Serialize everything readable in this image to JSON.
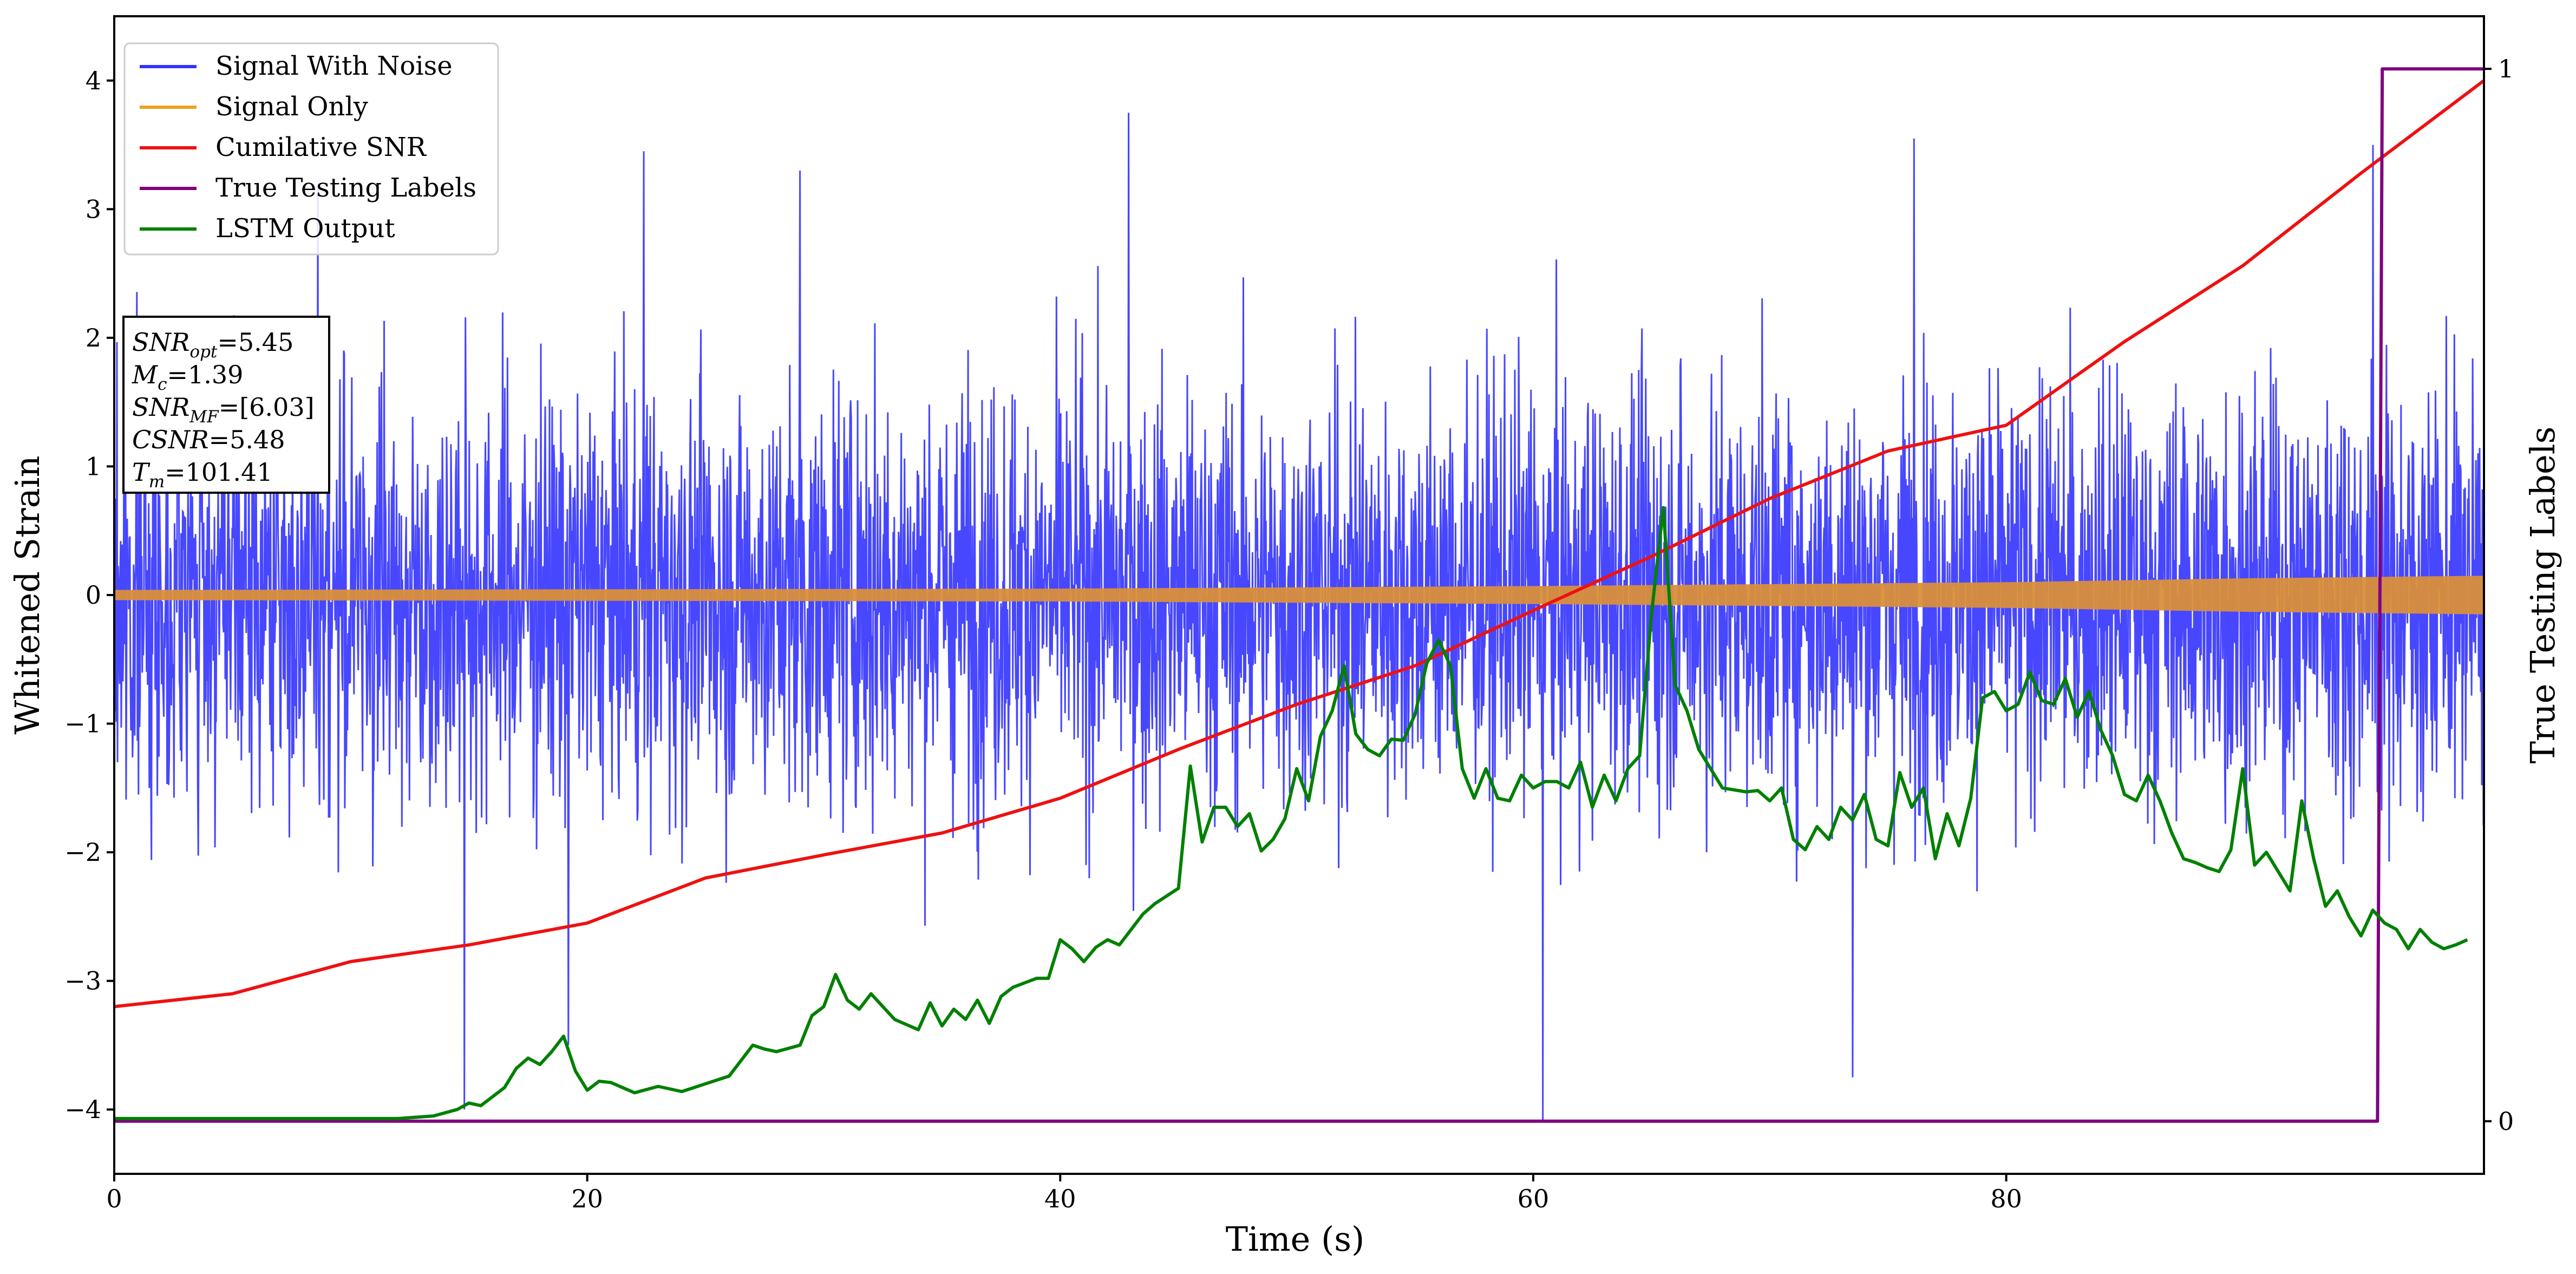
{
  "chart_data": {
    "type": "line",
    "xlabel": "Time (s)",
    "ylabel": "Whitened Strain",
    "y2label": "True Testing Labels",
    "xlim": [
      0,
      100.2
    ],
    "ylim": [
      -4.5,
      4.5
    ],
    "y2lim": [
      -0.05,
      1.05
    ],
    "xticks": [
      "0",
      "20",
      "40",
      "60",
      "80"
    ],
    "xtick_values": [
      0,
      20,
      40,
      60,
      80
    ],
    "yticks": [
      "−4",
      "−3",
      "−2",
      "−1",
      "0",
      "1",
      "2",
      "3",
      "4"
    ],
    "ytick_values": [
      -4,
      -3,
      -2,
      -1,
      0,
      1,
      2,
      3,
      4
    ],
    "y2ticks": [
      "0",
      "1"
    ],
    "y2tick_values": [
      0,
      1
    ],
    "legend_position": "upper-left",
    "grid": false,
    "series": [
      {
        "name": "Signal With Noise",
        "color": "#3333ff",
        "axis": "left",
        "style": "dense noise, approx. zero-mean, std ~0.9, extreme spikes",
        "spikes": [
          [
            14.8,
            -4.0
          ],
          [
            19.2,
            -3.5
          ],
          [
            60.4,
            -4.1
          ],
          [
            73.5,
            -3.75
          ],
          [
            42.9,
            3.75
          ],
          [
            22.4,
            3.45
          ],
          [
            76.1,
            3.55
          ],
          [
            95.5,
            3.5
          ],
          [
            8.6,
            3.2
          ],
          [
            29.0,
            3.3
          ]
        ]
      },
      {
        "name": "Signal Only",
        "color": "#d98f3a",
        "axis": "left",
        "style": "chirp band, half-amplitude growing with time",
        "amplitude_x": [
          0,
          40,
          60,
          80,
          90,
          100.2
        ],
        "amplitude_y": [
          0.04,
          0.05,
          0.07,
          0.1,
          0.13,
          0.15
        ]
      },
      {
        "name": "Cumilative SNR",
        "color": "#ee1111",
        "axis": "left",
        "x": [
          0,
          5,
          10,
          15,
          20,
          25,
          30,
          35,
          40,
          45,
          50,
          55,
          60,
          65,
          70,
          75,
          80,
          85,
          90,
          95,
          100.2
        ],
        "y": [
          -3.2,
          -3.1,
          -2.85,
          -2.72,
          -2.55,
          -2.2,
          -2.02,
          -1.85,
          -1.58,
          -1.2,
          -0.85,
          -0.55,
          -0.12,
          0.3,
          0.75,
          1.12,
          1.32,
          1.97,
          2.56,
          3.28,
          4.0
        ]
      },
      {
        "name": "True Testing Labels",
        "color": "#800080",
        "axis": "right",
        "x": [
          0,
          95.7,
          95.9,
          100.2
        ],
        "y": [
          0,
          0,
          1,
          1
        ]
      },
      {
        "name": "LSTM Output",
        "color": "#008000",
        "axis": "left",
        "x": [
          0,
          12,
          13.5,
          14.5,
          15,
          15.5,
          16,
          16.5,
          17,
          17.5,
          18,
          18.5,
          19,
          19.5,
          20,
          20.5,
          21,
          22,
          23,
          24,
          25,
          26,
          27,
          27.5,
          28,
          29,
          29.5,
          30,
          30.5,
          31,
          31.5,
          32,
          33,
          34,
          34.5,
          35,
          35.5,
          36,
          36.5,
          37,
          37.5,
          38,
          39,
          39.5,
          40,
          40.5,
          41,
          41.5,
          42,
          42.5,
          43,
          43.5,
          44,
          45,
          45.5,
          46,
          46.5,
          47,
          47.5,
          48,
          48.5,
          49,
          49.5,
          50,
          50.5,
          51,
          51.5,
          52,
          52.5,
          53,
          53.5,
          54,
          54.5,
          55,
          55.5,
          56,
          56.5,
          57,
          57.5,
          58,
          58.5,
          59,
          59.5,
          60,
          60.5,
          61,
          61.5,
          62,
          62.5,
          63,
          63.5,
          64,
          64.5,
          65,
          65.5,
          66,
          66.5,
          67,
          67.5,
          68,
          69,
          69.5,
          70,
          70.5,
          71,
          71.5,
          72,
          72.5,
          73,
          73.5,
          74,
          74.5,
          75,
          75.5,
          76,
          76.5,
          77,
          77.5,
          78,
          78.5,
          79,
          79.5,
          80,
          80.5,
          81,
          81.5,
          82,
          82.5,
          83,
          83.5,
          84,
          84.5,
          85,
          85.5,
          86,
          86.5,
          87,
          87.5,
          88,
          88.5,
          89,
          89.5,
          90,
          90.5,
          91,
          91.5,
          92,
          92.5,
          93,
          93.5,
          94,
          94.5,
          95,
          95.5,
          96,
          96.5,
          97,
          97.5,
          98,
          98.5,
          99,
          99.5
        ],
        "y": [
          -4.07,
          -4.07,
          -4.05,
          -4.0,
          -3.95,
          -3.97,
          -3.9,
          -3.83,
          -3.68,
          -3.6,
          -3.65,
          -3.55,
          -3.43,
          -3.7,
          -3.85,
          -3.78,
          -3.79,
          -3.87,
          -3.82,
          -3.86,
          -3.8,
          -3.74,
          -3.5,
          -3.53,
          -3.55,
          -3.5,
          -3.27,
          -3.2,
          -2.95,
          -3.15,
          -3.22,
          -3.1,
          -3.3,
          -3.38,
          -3.17,
          -3.35,
          -3.22,
          -3.3,
          -3.15,
          -3.33,
          -3.12,
          -3.05,
          -2.98,
          -2.98,
          -2.68,
          -2.75,
          -2.85,
          -2.74,
          -2.68,
          -2.72,
          -2.6,
          -2.48,
          -2.4,
          -2.28,
          -1.33,
          -1.92,
          -1.65,
          -1.65,
          -1.8,
          -1.7,
          -1.99,
          -1.9,
          -1.74,
          -1.35,
          -1.6,
          -1.1,
          -0.9,
          -0.55,
          -1.08,
          -1.2,
          -1.25,
          -1.12,
          -1.13,
          -0.93,
          -0.53,
          -0.35,
          -0.55,
          -1.35,
          -1.58,
          -1.35,
          -1.58,
          -1.6,
          -1.4,
          -1.5,
          -1.45,
          -1.45,
          -1.5,
          -1.3,
          -1.65,
          -1.4,
          -1.6,
          -1.35,
          -1.25,
          -0.15,
          0.68,
          -0.7,
          -0.9,
          -1.2,
          -1.35,
          -1.5,
          -1.53,
          -1.52,
          -1.6,
          -1.5,
          -1.9,
          -1.98,
          -1.8,
          -1.9,
          -1.65,
          -1.75,
          -1.55,
          -1.9,
          -1.95,
          -1.38,
          -1.65,
          -1.5,
          -2.05,
          -1.7,
          -1.95,
          -1.58,
          -0.8,
          -0.75,
          -0.9,
          -0.85,
          -0.6,
          -0.82,
          -0.85,
          -0.65,
          -0.95,
          -0.75,
          -1.05,
          -1.25,
          -1.55,
          -1.6,
          -1.4,
          -1.6,
          -1.85,
          -2.05,
          -2.08,
          -2.12,
          -2.15,
          -1.98,
          -1.35,
          -2.1,
          -2.0,
          -2.15,
          -2.3,
          -1.6,
          -2.05,
          -2.42,
          -2.3,
          -2.5,
          -2.65,
          -2.45,
          -2.55,
          -2.6,
          -2.75,
          -2.6,
          -2.7,
          -2.75,
          -2.72,
          -2.68
        ]
      }
    ],
    "annotation": {
      "lines": [
        {
          "base": "SNR",
          "sub": "opt",
          "value": "=5.45"
        },
        {
          "base": "M",
          "sub": "c",
          "value": "=1.39"
        },
        {
          "base": "SNR",
          "sub": "MF",
          "value": "=[6.03]"
        },
        {
          "base": "CSNR",
          "sub": "",
          "value": "=5.48"
        },
        {
          "base": "T",
          "sub": "m",
          "value": "=101.41"
        }
      ]
    }
  }
}
